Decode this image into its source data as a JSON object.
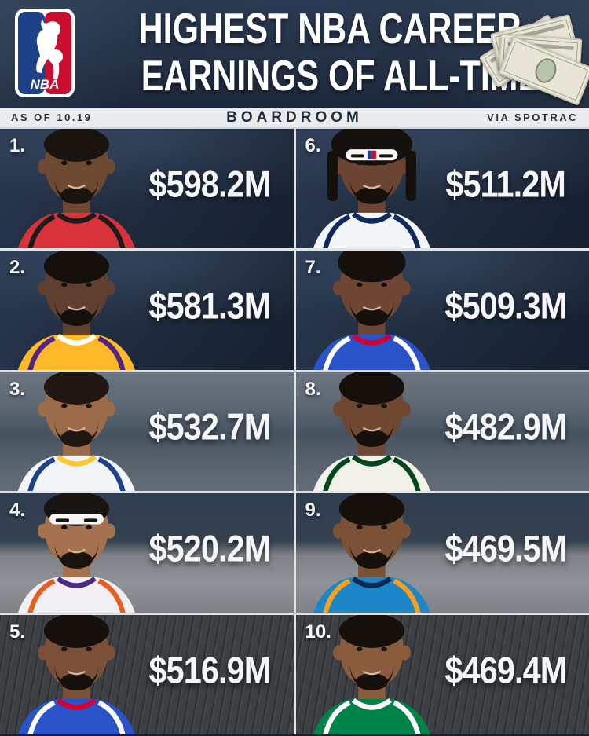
{
  "header": {
    "title_line1": "HIGHEST NBA CAREER",
    "title_line2": "EARNINGS OF ALL-TIME",
    "logo_text": "NBA",
    "logo_icon": "nba-logo",
    "money_icon": "dollar-bills-icon"
  },
  "subheader": {
    "as_of": "AS OF 10.19",
    "brand": "BOARDROOM",
    "source": "VIA SPOTRAC"
  },
  "colors": {
    "header_bg": "#223044",
    "bar_bg": "#e9ebed",
    "bar_text": "#20303f",
    "divider": "#e0e3e6",
    "amount_text": "#f5f6f7",
    "nba_blue": "#1d428a",
    "nba_red": "#c8102e"
  },
  "players": [
    {
      "rank": "1.",
      "amount": "$598.2M",
      "avatar": "kevin-durant-avatar",
      "bg": "arena",
      "skin": "#6f4a33",
      "hair": "short",
      "hair_color": "#1a1410",
      "jersey": "#d8323a",
      "trim": "#1b1b1b",
      "trim2": "#1b1b1b",
      "beard": true
    },
    {
      "rank": "2.",
      "amount": "$581.3M",
      "avatar": "lebron-james-avatar",
      "bg": "arena",
      "skin": "#5f4030",
      "hair": "short",
      "hair_color": "#15100c",
      "jersey": "#fdb927",
      "trim": "#552583",
      "trim2": "#ffffff",
      "beard": true
    },
    {
      "rank": "3.",
      "amount": "$532.7M",
      "avatar": "stephen-curry-avatar",
      "bg": "court",
      "skin": "#9c6b4a",
      "hair": "short",
      "hair_color": "#201712",
      "jersey": "#f2f4f6",
      "trim": "#1d428a",
      "trim2": "#ffc72c",
      "beard": true
    },
    {
      "rank": "4.",
      "amount": "$520.2M",
      "avatar": "devin-booker-avatar",
      "bg": "split",
      "skin": "#a5714e",
      "hair": "band",
      "hair_color": "#1a1410",
      "jersey": "#f1eff3",
      "trim": "#e56020",
      "trim2": "#4a2d82",
      "beard": true
    },
    {
      "rank": "5.",
      "amount": "$516.9M",
      "avatar": "paul-george-avatar",
      "bg": "wood",
      "skin": "#7a5138",
      "hair": "short",
      "hair_color": "#15100c",
      "jersey": "#2a52c9",
      "trim": "#ffffff",
      "trim2": "#d50032",
      "beard": true
    },
    {
      "rank": "6.",
      "amount": "$511.2M",
      "avatar": "anthony-davis-avatar",
      "bg": "arena",
      "skin": "#6b4531",
      "hair": "bandlocs",
      "hair_color": "#15100c",
      "jersey": "#f3f5f9",
      "trim": "#0f2a5c",
      "trim2": "#0f2a5c",
      "beard": true
    },
    {
      "rank": "7.",
      "amount": "$509.3M",
      "avatar": "joel-embiid-avatar",
      "bg": "arena",
      "skin": "#6d4733",
      "hair": "tall",
      "hair_color": "#15100c",
      "jersey": "#2a52c9",
      "trim": "#ffffff",
      "trim2": "#d50032",
      "beard": true
    },
    {
      "rank": "8.",
      "amount": "$482.9M",
      "avatar": "damian-lillard-avatar",
      "bg": "court",
      "skin": "#6e4832",
      "hair": "short",
      "hair_color": "#15100c",
      "jersey": "#f2f1e9",
      "trim": "#00471b",
      "trim2": "#00471b",
      "beard": true
    },
    {
      "rank": "9.",
      "amount": "$469.5M",
      "avatar": "shai-gilgeous-alexander-avatar",
      "bg": "split",
      "skin": "#7c5236",
      "hair": "short",
      "hair_color": "#15100c",
      "jersey": "#1d86c8",
      "trim": "#f9a01b",
      "trim2": "#0b2b52",
      "beard": true
    },
    {
      "rank": "10.",
      "amount": "$469.4M",
      "avatar": "jayson-tatum-avatar",
      "bg": "wood",
      "skin": "#8a5c3d",
      "hair": "short",
      "hair_color": "#15100c",
      "jersey": "#008348",
      "trim": "#ffffff",
      "trim2": "#ffffff",
      "beard": true
    }
  ],
  "grid_order": [
    0,
    5,
    1,
    6,
    2,
    7,
    3,
    8,
    4,
    9
  ],
  "chart_data": {
    "type": "table",
    "title": "HIGHEST NBA CAREER EARNINGS OF ALL-TIME",
    "subtitle_left": "AS OF 10.19",
    "source": "VIA SPOTRAC",
    "publisher": "BOARDROOM",
    "unit": "USD millions",
    "categories": [
      "1.",
      "2.",
      "3.",
      "4.",
      "5.",
      "6.",
      "7.",
      "8.",
      "9.",
      "10."
    ],
    "values": [
      598.2,
      581.3,
      532.7,
      520.2,
      516.9,
      511.2,
      509.3,
      482.9,
      469.5,
      469.4
    ],
    "value_labels": [
      "$598.2M",
      "$581.3M",
      "$532.7M",
      "$520.2M",
      "$516.9M",
      "$511.2M",
      "$509.3M",
      "$482.9M",
      "$469.5M",
      "$469.4M"
    ],
    "layout": "two-column ranked grid, ranks 1-5 left column, 6-10 right column"
  }
}
